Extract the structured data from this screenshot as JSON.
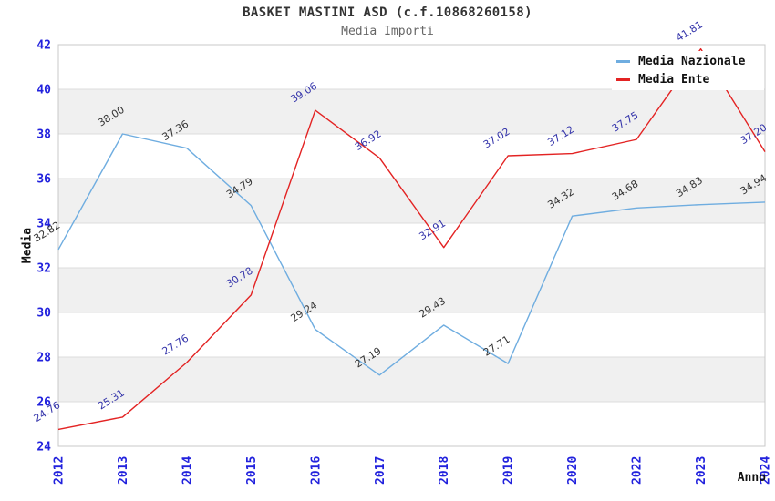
{
  "header": {
    "title": "BASKET MASTINI ASD (c.f.10868260158)",
    "subtitle": "Media Importi"
  },
  "axes": {
    "ylabel": "Media",
    "xlabel": "Anno",
    "yticks": [
      24,
      26,
      28,
      30,
      32,
      34,
      36,
      38,
      40,
      42
    ]
  },
  "legend": {
    "items": [
      {
        "label": "Media Nazionale",
        "color": "#6fade0"
      },
      {
        "label": "Media Ente",
        "color": "#e32323"
      }
    ]
  },
  "chart_data": {
    "type": "line",
    "title": "BASKET MASTINI ASD (c.f.10868260158)",
    "subtitle": "Media Importi",
    "xlabel": "Anno",
    "ylabel": "Media",
    "x": [
      2012,
      2013,
      2014,
      2015,
      2016,
      2017,
      2018,
      2019,
      2020,
      2022,
      2023,
      2024
    ],
    "series": [
      {
        "name": "Media Nazionale",
        "color": "#6fade0",
        "label_color": "#333333",
        "values": [
          32.82,
          38.0,
          37.36,
          34.79,
          29.24,
          27.19,
          29.43,
          27.71,
          34.32,
          34.68,
          34.83,
          34.94
        ]
      },
      {
        "name": "Media Ente",
        "color": "#e32323",
        "label_color": "#3333aa",
        "values": [
          24.76,
          25.31,
          27.76,
          30.78,
          39.06,
          36.92,
          32.91,
          37.02,
          37.12,
          37.75,
          41.81,
          37.2
        ]
      }
    ],
    "ylim": [
      24,
      42
    ],
    "ytick_step": 2,
    "grid": true,
    "band_fill": "#f0f0f0",
    "gridline_color": "#dcdcdc",
    "border_color": "#c8c8c8",
    "tick_color": "#2222dd",
    "legend_position": "top-right"
  }
}
